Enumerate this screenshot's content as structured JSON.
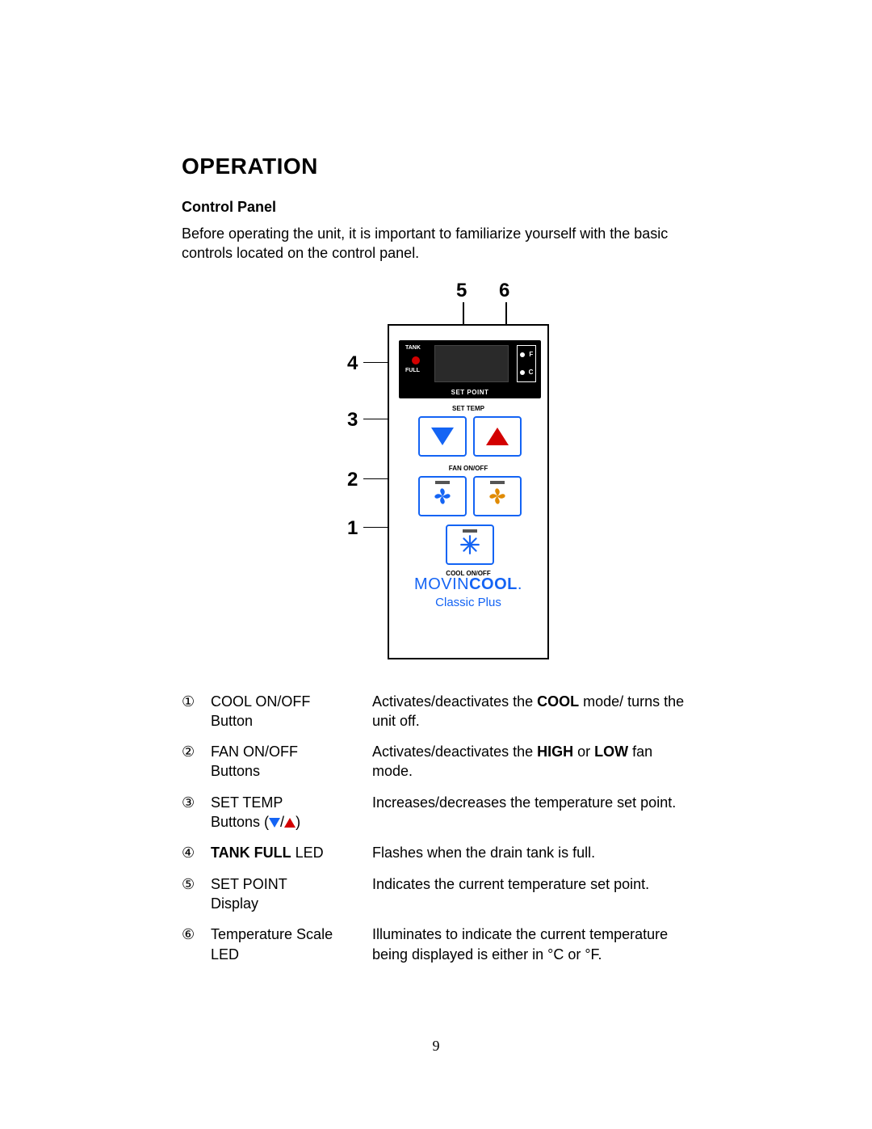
{
  "heading": "OPERATION",
  "subheading": "Control Panel",
  "intro": "Before operating the unit, it is important to familiarize yourself with the basic controls located on the control panel.",
  "page_number": "9",
  "colors": {
    "text": "#000000",
    "brand_blue": "#1464f4",
    "led_red": "#d30000",
    "triangle_up": "#d30000",
    "triangle_down": "#1464f4",
    "fan_high": "#1464f4",
    "fan_low": "#e08a00",
    "page_bg": "#ffffff",
    "display_bg": "#000000"
  },
  "diagram": {
    "callouts": {
      "1": "1",
      "2": "2",
      "3": "3",
      "4": "4",
      "5": "5",
      "6": "6"
    },
    "display": {
      "tank_label": "TANK",
      "full_label": "FULL",
      "set_point_label": "SET POINT",
      "scale_f": "F",
      "scale_c": "C"
    },
    "section_labels": {
      "set_temp": "SET TEMP",
      "fan_onoff": "FAN ON/OFF",
      "cool_onoff": "COOL ON/OFF"
    },
    "brand": {
      "movin": "MOVIN",
      "cool": "COOL",
      "dot": ".",
      "model": "Classic Plus"
    }
  },
  "legend": [
    {
      "num": "①",
      "name_lines": [
        "COOL ON/OFF",
        "Button"
      ],
      "name_bold": [
        false,
        false
      ],
      "desc_parts": [
        {
          "t": "Activates/deactivates the "
        },
        {
          "t": "COOL",
          "b": true
        },
        {
          "t": " mode/ turns the unit off."
        }
      ]
    },
    {
      "num": "②",
      "name_lines": [
        "FAN ON/OFF",
        "Buttons"
      ],
      "name_bold": [
        false,
        false
      ],
      "desc_parts": [
        {
          "t": "Activates/deactivates the "
        },
        {
          "t": "HIGH",
          "b": true
        },
        {
          "t": " or "
        },
        {
          "t": "LOW",
          "b": true
        },
        {
          "t": " fan mode."
        }
      ]
    },
    {
      "num": "③",
      "name_lines": [
        "SET TEMP"
      ],
      "name_bold": [
        false
      ],
      "name_extra": "buttons_tri",
      "name_extra_prefix": "Buttons (",
      "name_extra_sep": "/",
      "name_extra_suffix": ")",
      "desc_parts": [
        {
          "t": "Increases/decreases the temperature set point."
        }
      ]
    },
    {
      "num": "④",
      "name_lines": [
        "TANK FULL",
        " LED"
      ],
      "name_bold": [
        true,
        false
      ],
      "name_join": "inline",
      "desc_parts": [
        {
          "t": "Flashes when the drain tank is full."
        }
      ]
    },
    {
      "num": "⑤",
      "name_lines": [
        "SET POINT",
        "Display"
      ],
      "name_bold": [
        false,
        false
      ],
      "desc_parts": [
        {
          "t": "Indicates the current temperature set point."
        }
      ]
    },
    {
      "num": "⑥",
      "name_lines": [
        "Temperature Scale",
        "LED"
      ],
      "name_bold": [
        false,
        false
      ],
      "desc_parts": [
        {
          "t": "Illuminates to indicate the current temperature being displayed is either in °C or °F."
        }
      ]
    }
  ]
}
